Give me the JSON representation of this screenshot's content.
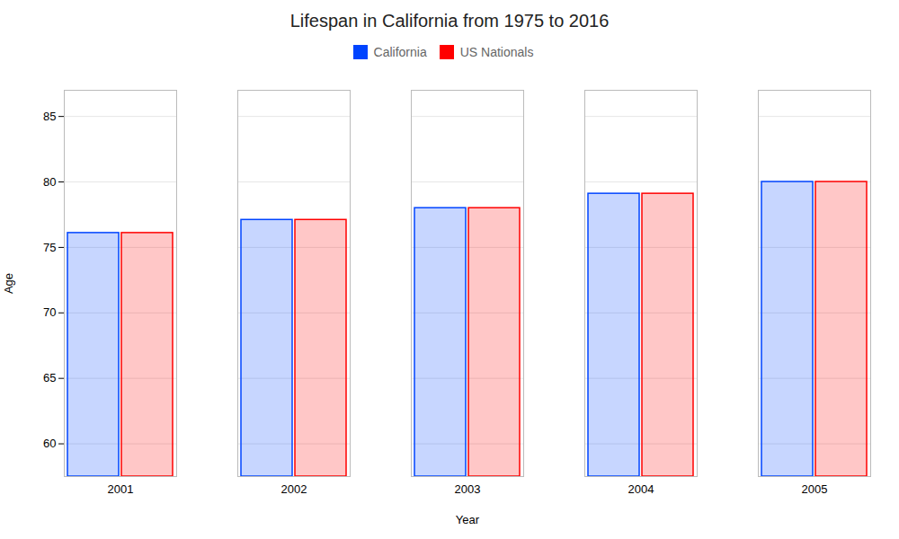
{
  "chart_data": {
    "type": "bar",
    "title": "Lifespan in California from 1975 to 2016",
    "x_label": "Year",
    "y_label": "Age",
    "categories": [
      2001,
      2002,
      2003,
      2004,
      2005
    ],
    "series": [
      {
        "name": "California",
        "color": "#0044ff",
        "values": [
          76.1,
          77.1,
          78.0,
          79.1,
          80.0
        ]
      },
      {
        "name": "US Nationals",
        "color": "#ff0000",
        "values": [
          76.1,
          77.1,
          78.0,
          79.1,
          80.0
        ]
      }
    ],
    "ylim": [
      57.5,
      87
    ],
    "yticks": [
      60,
      65,
      70,
      75,
      80,
      85
    ],
    "grid": true,
    "legend": "top"
  }
}
